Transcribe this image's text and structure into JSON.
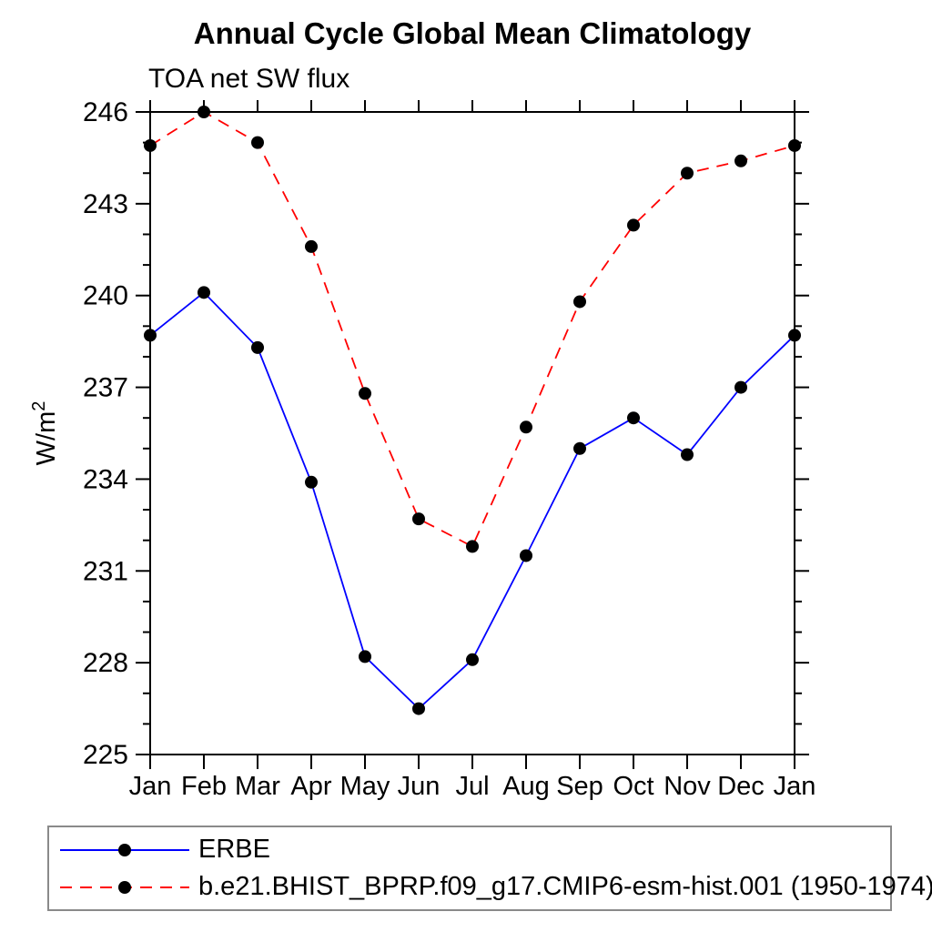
{
  "title": "Annual Cycle Global Mean Climatology",
  "subtitle": "TOA net SW flux",
  "ylabel": {
    "base": "W/m",
    "sup": "2"
  },
  "legend": {
    "items": [
      {
        "label": "ERBE",
        "color": "#0000ff",
        "dasharray": "none",
        "marker_color": "#000000"
      },
      {
        "label": "b.e21.BHIST_BPRP.f09_g17.CMIP6-esm-hist.001 (1950-1974)",
        "color": "#ff0000",
        "dasharray": "13 9",
        "marker_color": "#000000"
      }
    ]
  },
  "chart_data": {
    "type": "line",
    "title": "Annual Cycle Global Mean Climatology",
    "subtitle": "TOA net SW flux",
    "xlabel": "",
    "ylabel": "W/m2",
    "categories": [
      "Jan",
      "Feb",
      "Mar",
      "Apr",
      "May",
      "Jun",
      "Jul",
      "Aug",
      "Sep",
      "Oct",
      "Nov",
      "Dec",
      "Jan"
    ],
    "series": [
      {
        "name": "ERBE",
        "color": "#0000ff",
        "line_style": "solid",
        "marker": "filled-circle",
        "marker_color": "#000000",
        "values": [
          238.7,
          240.1,
          238.3,
          233.9,
          228.2,
          226.5,
          228.1,
          231.5,
          235.0,
          236.0,
          234.8,
          237.0,
          238.7
        ]
      },
      {
        "name": "b.e21.BHIST_BPRP.f09_g17.CMIP6-esm-hist.001 (1950-1974)",
        "color": "#ff0000",
        "line_style": "dashed",
        "marker": "filled-circle",
        "marker_color": "#000000",
        "values": [
          244.9,
          246.0,
          245.0,
          241.6,
          236.8,
          232.7,
          231.8,
          235.7,
          239.8,
          242.3,
          244.0,
          244.4,
          244.9
        ]
      }
    ],
    "ylim": [
      225,
      246
    ],
    "yticks_major": [
      225,
      228,
      231,
      234,
      237,
      240,
      243,
      246
    ],
    "ytick_minor_step": 1,
    "grid": false,
    "legend_position": "bottom"
  }
}
